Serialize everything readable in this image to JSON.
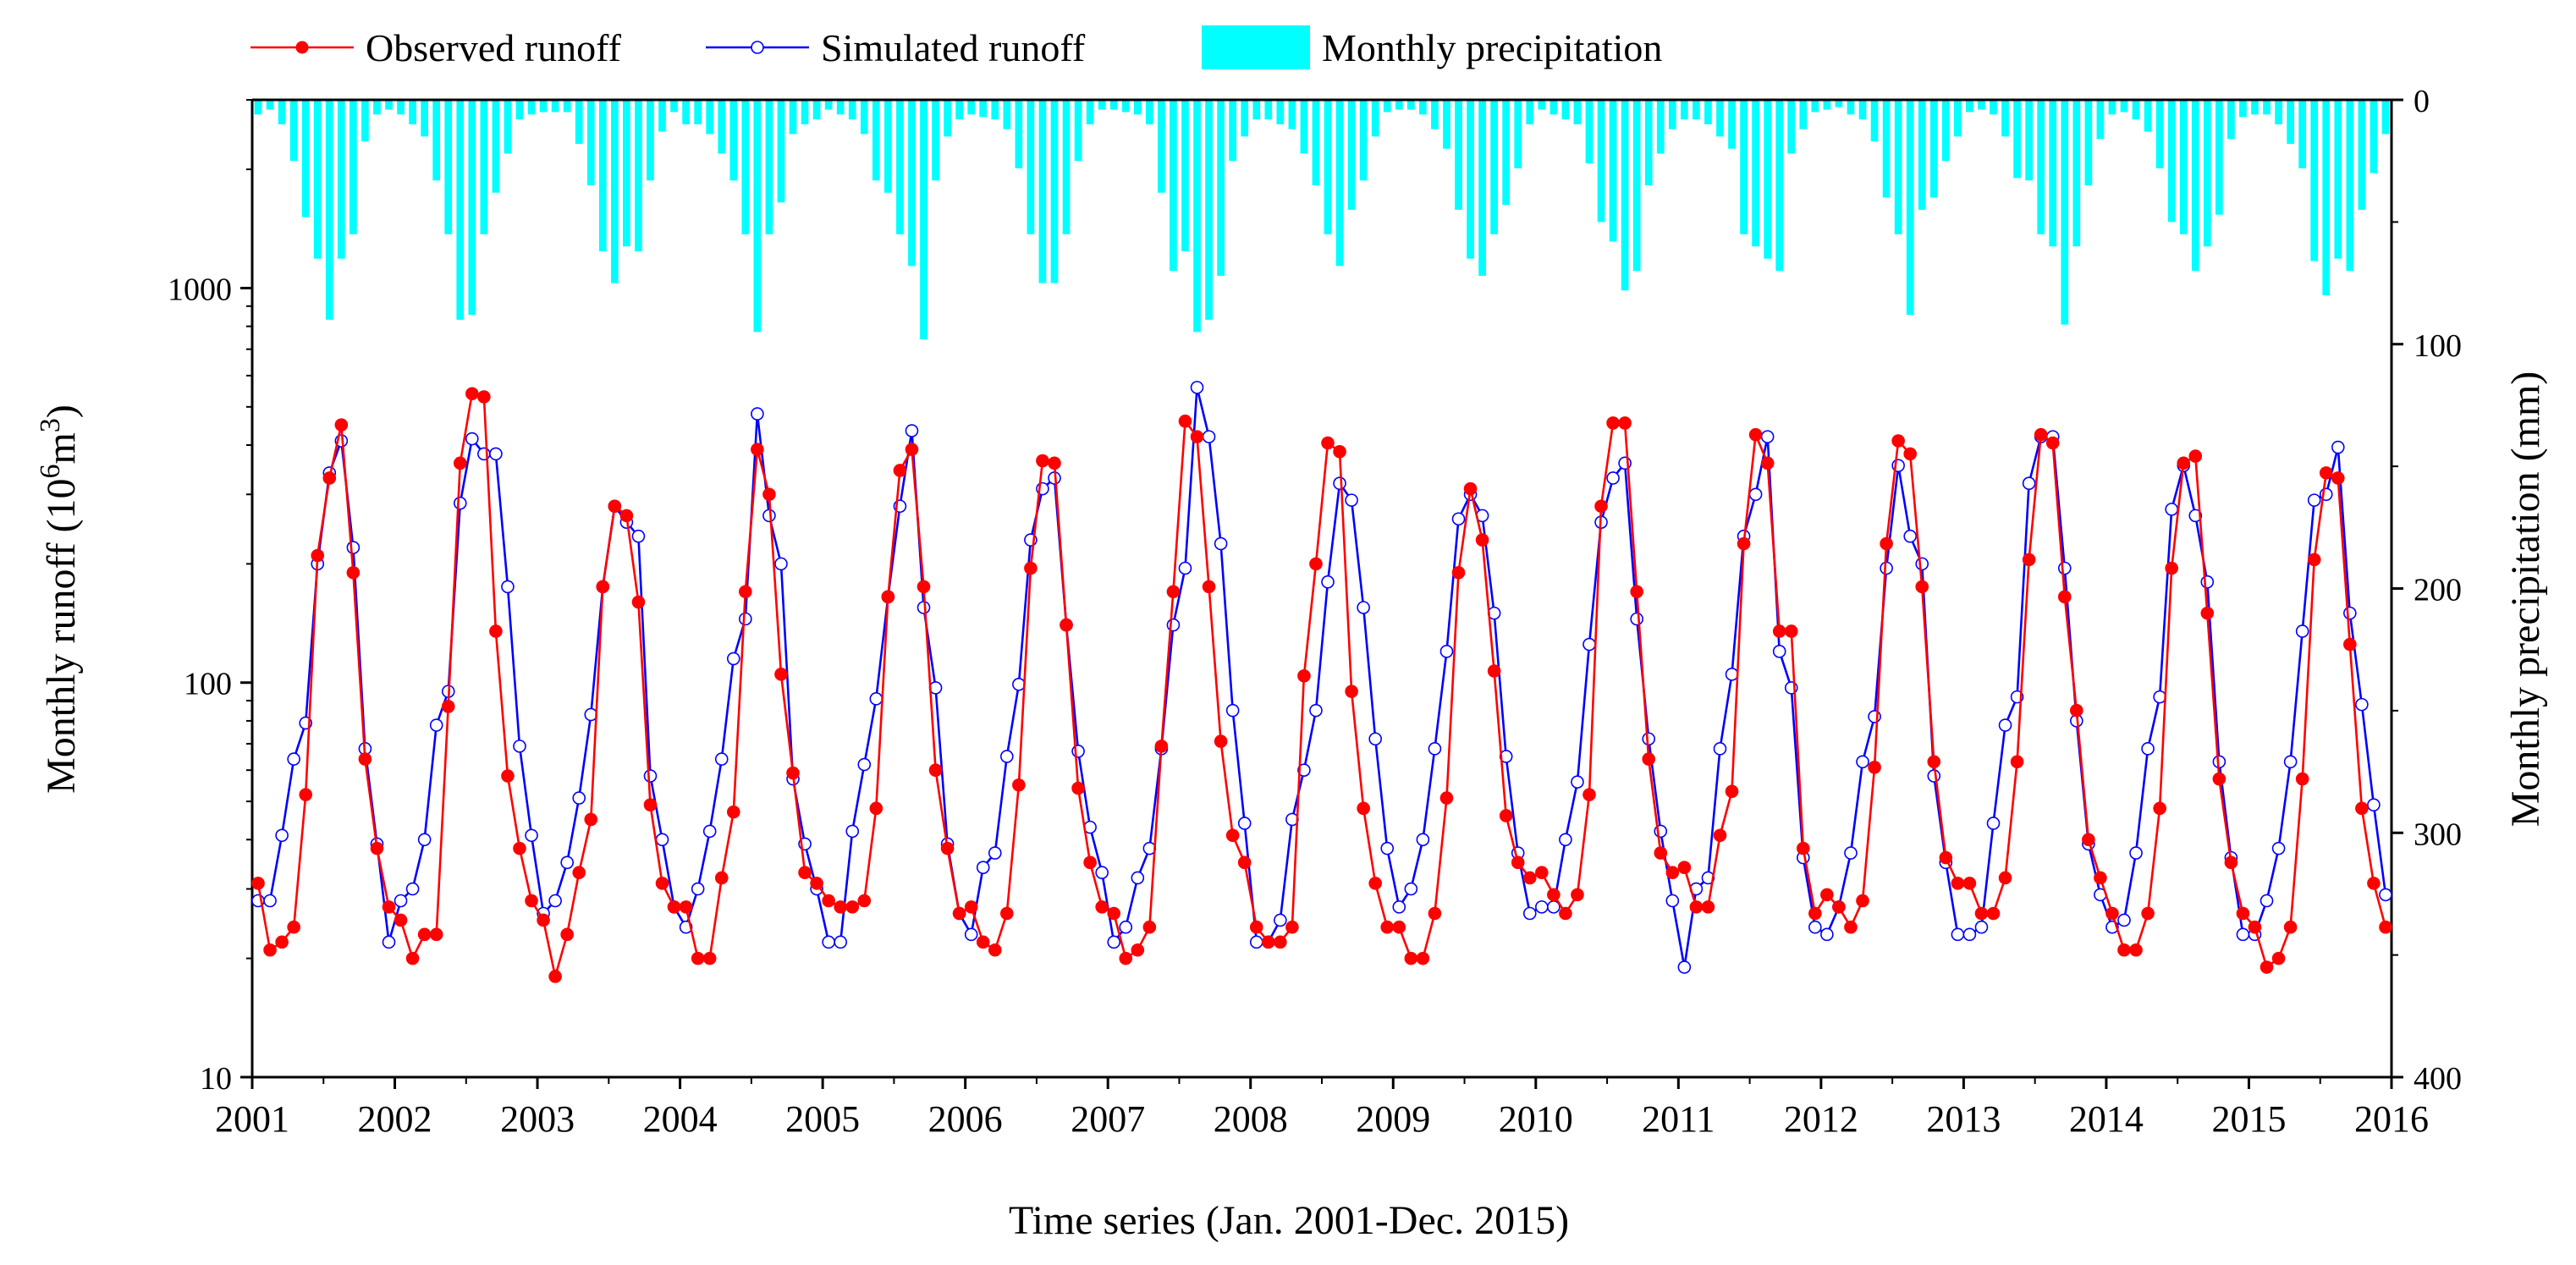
{
  "chart_data": {
    "type": "line",
    "title": "",
    "xlabel": "Time series (Jan. 2001-Dec. 2015)",
    "ylabel": "Monthly runoff (10⁶m³)",
    "y2label": "Monthly precipitation (mm)",
    "xlim": [
      2001,
      2016
    ],
    "ylim_log": [
      10,
      3000
    ],
    "y2lim": [
      0,
      400
    ],
    "y2_inverted": true,
    "x_ticks": [
      "2001",
      "2002",
      "2003",
      "2004",
      "2005",
      "2006",
      "2007",
      "2008",
      "2009",
      "2010",
      "2011",
      "2012",
      "2013",
      "2014",
      "2015",
      "2016"
    ],
    "y_ticks": [
      "10",
      "100",
      "1000"
    ],
    "y2_ticks": [
      "0",
      "100",
      "200",
      "300",
      "400"
    ],
    "legend": {
      "position": "top-left",
      "items": [
        "Observed runoff",
        "Simulated runoff",
        "Monthly precipitation"
      ]
    },
    "months_start": "2001-01",
    "series": [
      {
        "name": "Observed runoff",
        "color": "#ff0000",
        "marker": "filled-circle",
        "values": [
          31,
          21,
          22,
          24,
          52,
          210,
          330,
          450,
          190,
          64,
          38,
          27,
          25,
          20,
          23,
          23,
          87,
          360,
          540,
          530,
          135,
          58,
          38,
          28,
          25,
          18,
          23,
          33,
          45,
          175,
          280,
          265,
          160,
          49,
          31,
          27,
          27,
          20,
          20,
          32,
          47,
          170,
          390,
          300,
          105,
          59,
          33,
          31,
          28,
          27,
          27,
          28,
          48,
          165,
          345,
          390,
          175,
          60,
          38,
          26,
          27,
          22,
          21,
          26,
          55,
          195,
          365,
          360,
          140,
          54,
          35,
          27,
          26,
          20,
          21,
          24,
          69,
          170,
          460,
          420,
          175,
          71,
          41,
          35,
          24,
          22,
          22,
          24,
          104,
          200,
          405,
          385,
          95,
          48,
          31,
          24,
          24,
          20,
          20,
          26,
          51,
          190,
          310,
          230,
          107,
          46,
          35,
          32,
          33,
          29,
          26,
          29,
          52,
          280,
          455,
          455,
          170,
          64,
          37,
          33,
          34,
          27,
          27,
          41,
          53,
          225,
          425,
          360,
          135,
          135,
          38,
          26,
          29,
          27,
          24,
          28,
          61,
          225,
          410,
          380,
          175,
          63,
          36,
          31,
          31,
          26,
          26,
          32,
          63,
          205,
          425,
          405,
          165,
          85,
          40,
          32,
          26,
          21,
          21,
          26,
          48,
          195,
          360,
          375,
          150,
          57,
          35,
          26,
          24,
          19,
          20,
          24,
          57,
          205,
          340,
          330,
          125,
          48,
          31,
          24
        ]
      },
      {
        "name": "Simulated runoff",
        "color": "#0000ff",
        "marker": "open-circle",
        "values": [
          28,
          28,
          41,
          64,
          79,
          200,
          340,
          410,
          220,
          68,
          39,
          22,
          28,
          30,
          40,
          78,
          95,
          285,
          415,
          380,
          380,
          175,
          69,
          41,
          26,
          28,
          35,
          51,
          83,
          175,
          280,
          255,
          235,
          58,
          40,
          27,
          24,
          30,
          42,
          64,
          115,
          145,
          480,
          265,
          200,
          57,
          39,
          30,
          22,
          22,
          42,
          62,
          91,
          165,
          280,
          435,
          155,
          97,
          39,
          26,
          23,
          34,
          37,
          65,
          99,
          230,
          310,
          330,
          140,
          67,
          43,
          33,
          22,
          24,
          32,
          38,
          68,
          140,
          195,
          560,
          420,
          225,
          85,
          44,
          22,
          22,
          25,
          45,
          60,
          85,
          180,
          320,
          290,
          155,
          72,
          38,
          27,
          30,
          40,
          68,
          120,
          260,
          300,
          265,
          150,
          65,
          37,
          26,
          27,
          27,
          40,
          56,
          125,
          255,
          330,
          360,
          145,
          72,
          42,
          28,
          19,
          30,
          32,
          68,
          105,
          235,
          300,
          420,
          120,
          97,
          36,
          24,
          23,
          27,
          37,
          63,
          82,
          195,
          355,
          235,
          200,
          58,
          35,
          23,
          23,
          24,
          44,
          78,
          92,
          320,
          420,
          420,
          195,
          80,
          39,
          29,
          24,
          25,
          37,
          68,
          92,
          275,
          355,
          265,
          180,
          63,
          36,
          23,
          23,
          28,
          38,
          63,
          135,
          290,
          300,
          395,
          150,
          88,
          49,
          29
        ]
      },
      {
        "name": "Monthly precipitation",
        "color": "#00ffff",
        "unit": "mm",
        "axis": "right-inverted",
        "values": [
          6,
          4,
          10,
          25,
          48,
          65,
          90,
          65,
          55,
          17,
          6,
          4,
          6,
          10,
          15,
          33,
          55,
          90,
          88,
          55,
          38,
          22,
          8,
          6,
          5,
          5,
          5,
          18,
          35,
          62,
          75,
          60,
          62,
          33,
          13,
          5,
          10,
          10,
          14,
          22,
          33,
          55,
          95,
          55,
          42,
          14,
          10,
          8,
          4,
          6,
          8,
          14,
          33,
          38,
          55,
          68,
          98,
          33,
          15,
          8,
          6,
          7,
          8,
          12,
          28,
          55,
          75,
          75,
          55,
          25,
          10,
          4,
          4,
          5,
          6,
          10,
          38,
          70,
          62,
          95,
          90,
          72,
          25,
          15,
          8,
          8,
          10,
          12,
          22,
          35,
          55,
          68,
          45,
          33,
          15,
          5,
          4,
          4,
          6,
          12,
          20,
          45,
          65,
          72,
          55,
          43,
          28,
          10,
          4,
          6,
          8,
          10,
          26,
          50,
          58,
          78,
          70,
          35,
          22,
          12,
          8,
          8,
          10,
          15,
          20,
          55,
          60,
          65,
          70,
          22,
          12,
          5,
          4,
          3,
          6,
          8,
          17,
          40,
          55,
          88,
          45,
          40,
          25,
          15,
          5,
          4,
          6,
          15,
          32,
          33,
          55,
          60,
          92,
          60,
          35,
          16,
          6,
          5,
          8,
          13,
          28,
          50,
          55,
          70,
          60,
          47,
          16,
          7,
          6,
          6,
          10,
          18,
          28,
          66,
          80,
          65,
          70,
          45,
          30,
          14
        ]
      }
    ]
  }
}
